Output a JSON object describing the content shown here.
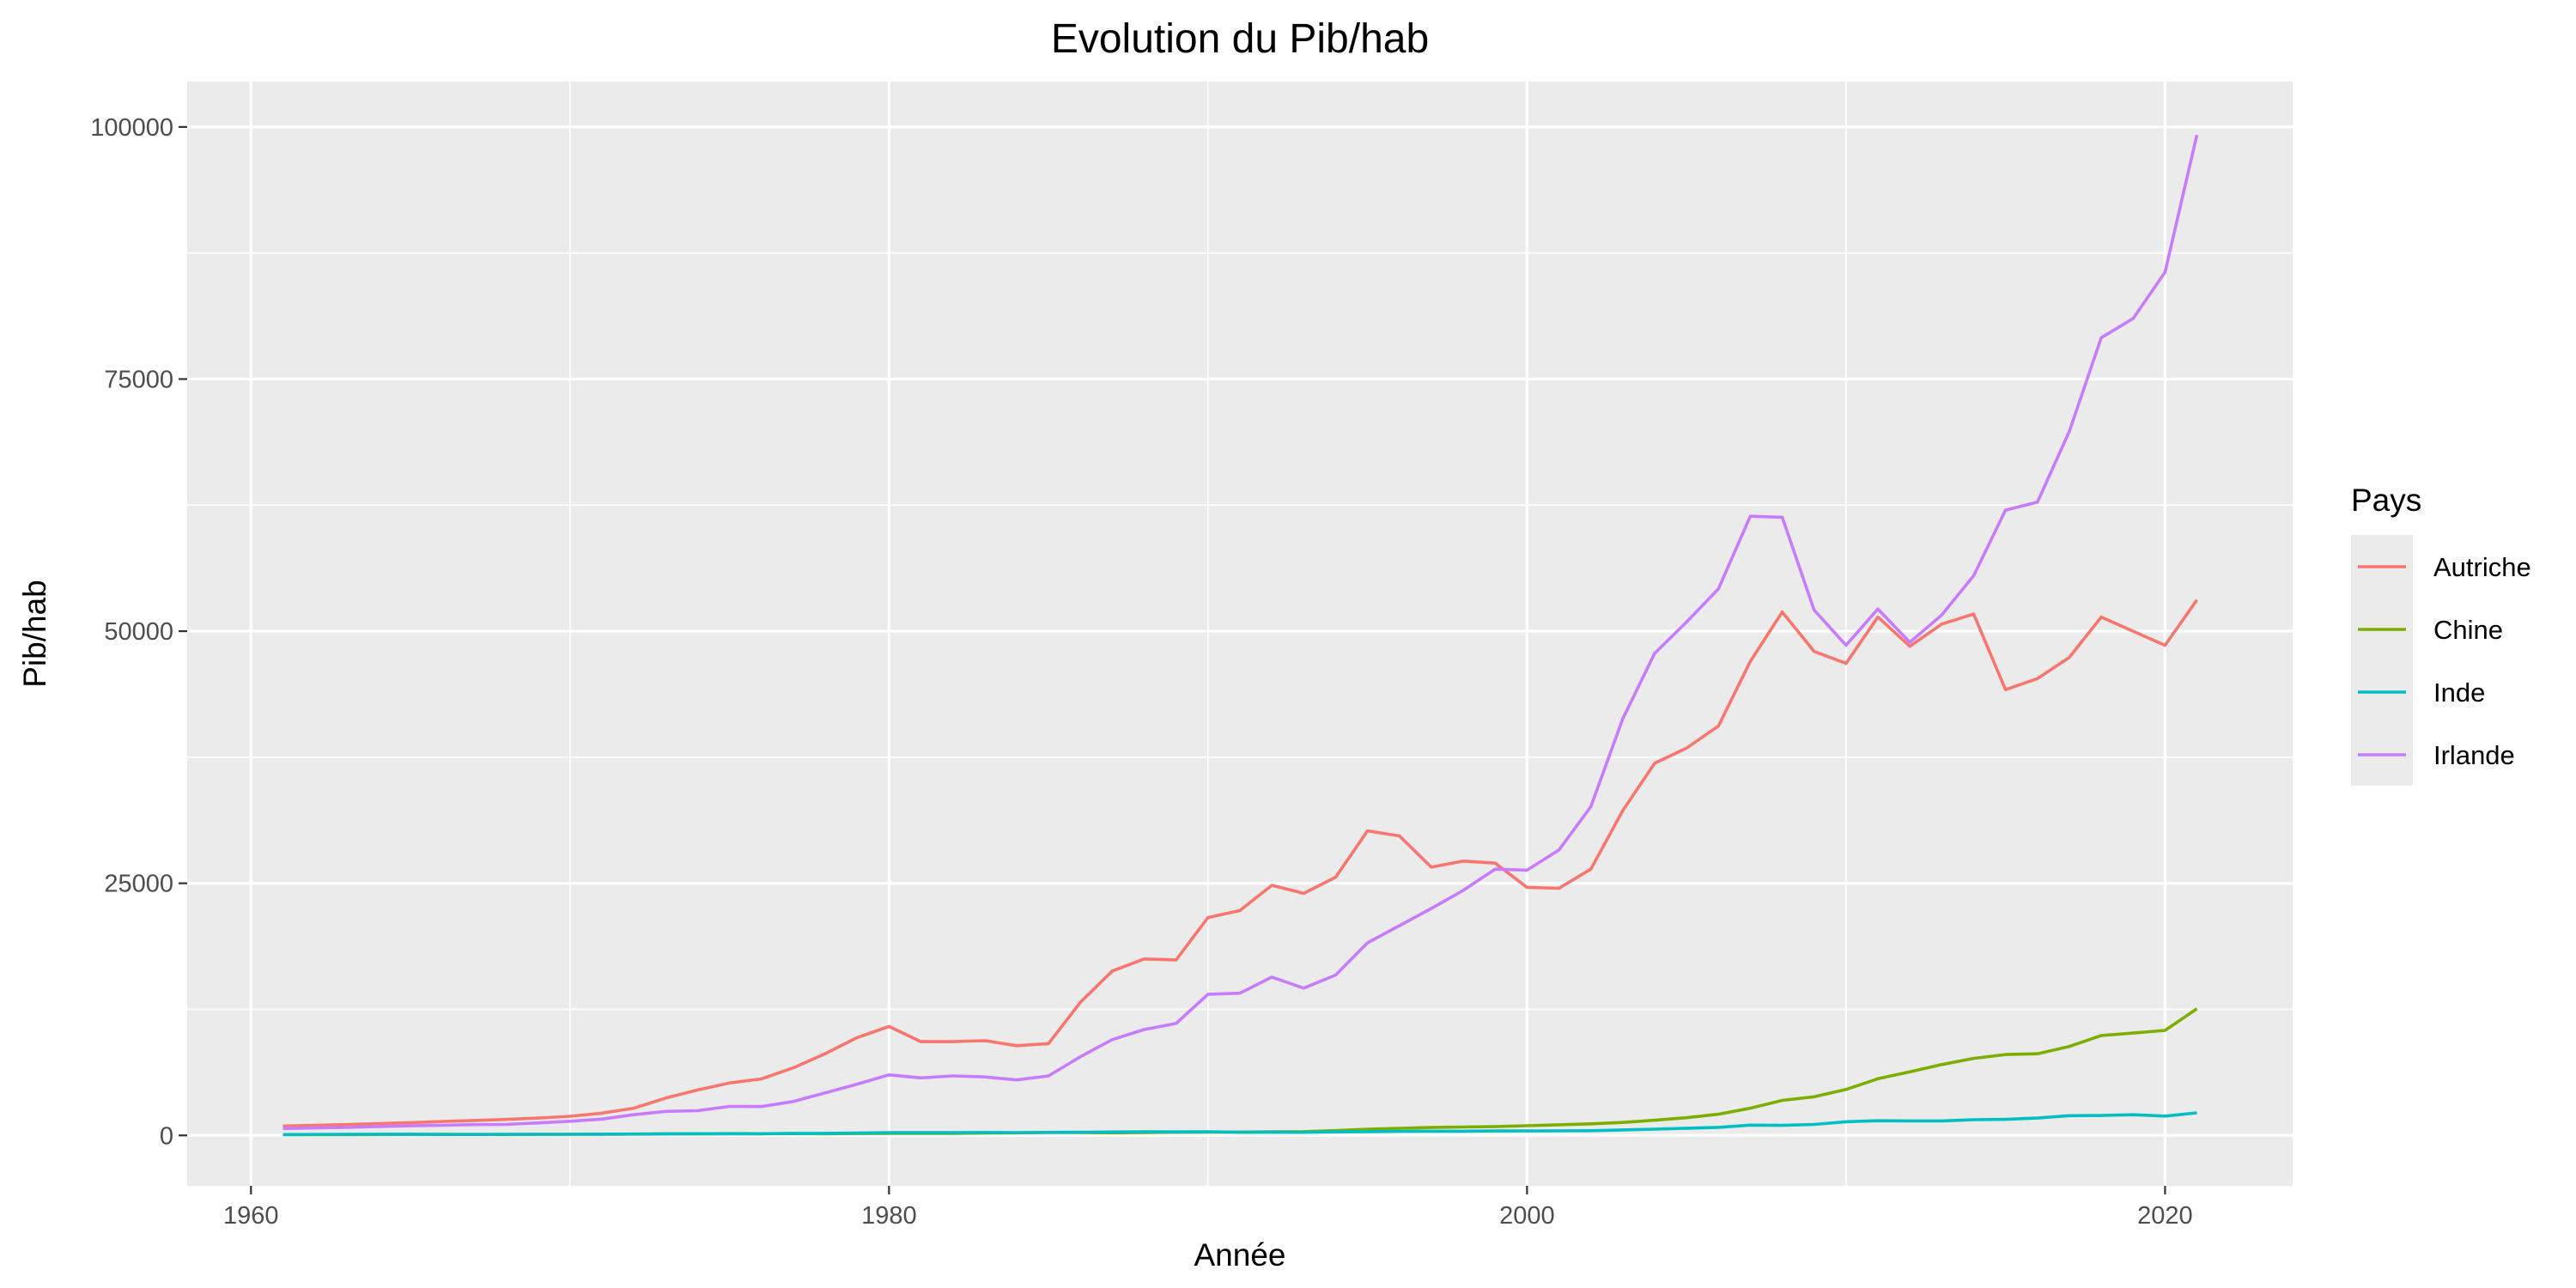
{
  "chart_data": {
    "type": "line",
    "title": "Evolution du Pib/hab",
    "xlabel": "Année",
    "ylabel": "Pib/hab",
    "xlim": [
      1958.0,
      2024.0
    ],
    "ylim": [
      -5000,
      104500
    ],
    "x_ticks": [
      1960,
      1980,
      2000,
      2020
    ],
    "y_ticks": [
      0,
      25000,
      50000,
      75000,
      100000
    ],
    "x_tick_labels": [
      "1960",
      "1980",
      "2000",
      "2020"
    ],
    "y_tick_labels": [
      "0",
      "25000",
      "50000",
      "75000",
      "100000"
    ],
    "grid": true,
    "legend": {
      "title": "Pays",
      "placement": "right"
    },
    "background": "#EBEBEB",
    "x": [
      1961,
      1962,
      1963,
      1964,
      1965,
      1966,
      1967,
      1968,
      1969,
      1970,
      1971,
      1972,
      1973,
      1974,
      1975,
      1976,
      1977,
      1978,
      1979,
      1980,
      1981,
      1982,
      1983,
      1984,
      1985,
      1986,
      1987,
      1988,
      1989,
      1990,
      1991,
      1992,
      1993,
      1994,
      1995,
      1996,
      1997,
      1998,
      1999,
      2000,
      2001,
      2002,
      2003,
      2004,
      2005,
      2006,
      2007,
      2008,
      2009,
      2010,
      2011,
      2012,
      2013,
      2014,
      2015,
      2016,
      2017,
      2018,
      2019,
      2020,
      2021
    ],
    "series": [
      {
        "name": "Autriche",
        "color": "#F8766D",
        "values": [
          930,
          1000,
          1070,
          1170,
          1270,
          1380,
          1480,
          1580,
          1720,
          1900,
          2200,
          2700,
          3700,
          4500,
          5200,
          5600,
          6700,
          8100,
          9700,
          10800,
          9300,
          9300,
          9400,
          8900,
          9100,
          13200,
          16300,
          17500,
          17400,
          21600,
          22300,
          24800,
          24000,
          25600,
          30200,
          29700,
          26600,
          27200,
          27000,
          24600,
          24500,
          26400,
          32200,
          36900,
          38400,
          40600,
          47000,
          51900,
          48000,
          46800,
          51400,
          48500,
          50700,
          51700,
          44200,
          45300,
          47400,
          51400,
          50000,
          48600,
          53100
        ]
      },
      {
        "name": "Chine",
        "color": "#7CAE00",
        "values": [
          75,
          70,
          74,
          85,
          98,
          104,
          96,
          91,
          100,
          113,
          118,
          131,
          157,
          160,
          178,
          165,
          185,
          156,
          184,
          195,
          197,
          203,
          225,
          250,
          294,
          282,
          251,
          283,
          310,
          318,
          333,
          366,
          377,
          473,
          610,
          709,
          782,
          829,
          873,
          959,
          1053,
          1148,
          1288,
          1508,
          1753,
          2099,
          2694,
          3468,
          3832,
          4550,
          5614,
          6301,
          7020,
          7636,
          8016,
          8094,
          8817,
          9905,
          10144,
          10409,
          12556
        ]
      },
      {
        "name": "Inde",
        "color": "#00BFC4",
        "values": [
          85,
          90,
          101,
          115,
          119,
          90,
          96,
          99,
          107,
          112,
          119,
          123,
          143,
          163,
          158,
          161,
          186,
          205,
          224,
          267,
          270,
          274,
          291,
          276,
          296,
          310,
          340,
          354,
          346,
          368,
          303,
          317,
          302,
          346,
          374,
          400,
          415,
          413,
          442,
          443,
          452,
          470,
          546,
          624,
          710,
          802,
          1023,
          993,
          1090,
          1351,
          1450,
          1434,
          1438,
          1560,
          1590,
          1714,
          1957,
          1974,
          2050,
          1913,
          2238
        ]
      },
      {
        "name": "Irlande",
        "color": "#C77CFF",
        "values": [
          680,
          735,
          790,
          880,
          950,
          1000,
          1070,
          1090,
          1240,
          1400,
          1620,
          2050,
          2380,
          2450,
          2880,
          2860,
          3360,
          4210,
          5080,
          6000,
          5700,
          5900,
          5800,
          5500,
          5900,
          7800,
          9500,
          10500,
          11100,
          14000,
          14100,
          15700,
          14600,
          15900,
          19100,
          20800,
          22500,
          24300,
          26400,
          26300,
          28300,
          32600,
          41300,
          47800,
          50900,
          54200,
          61400,
          61300,
          52100,
          48600,
          52200,
          48900,
          51600,
          55500,
          62000,
          62800,
          69800,
          79100,
          81000,
          85600,
          99200
        ]
      }
    ]
  }
}
